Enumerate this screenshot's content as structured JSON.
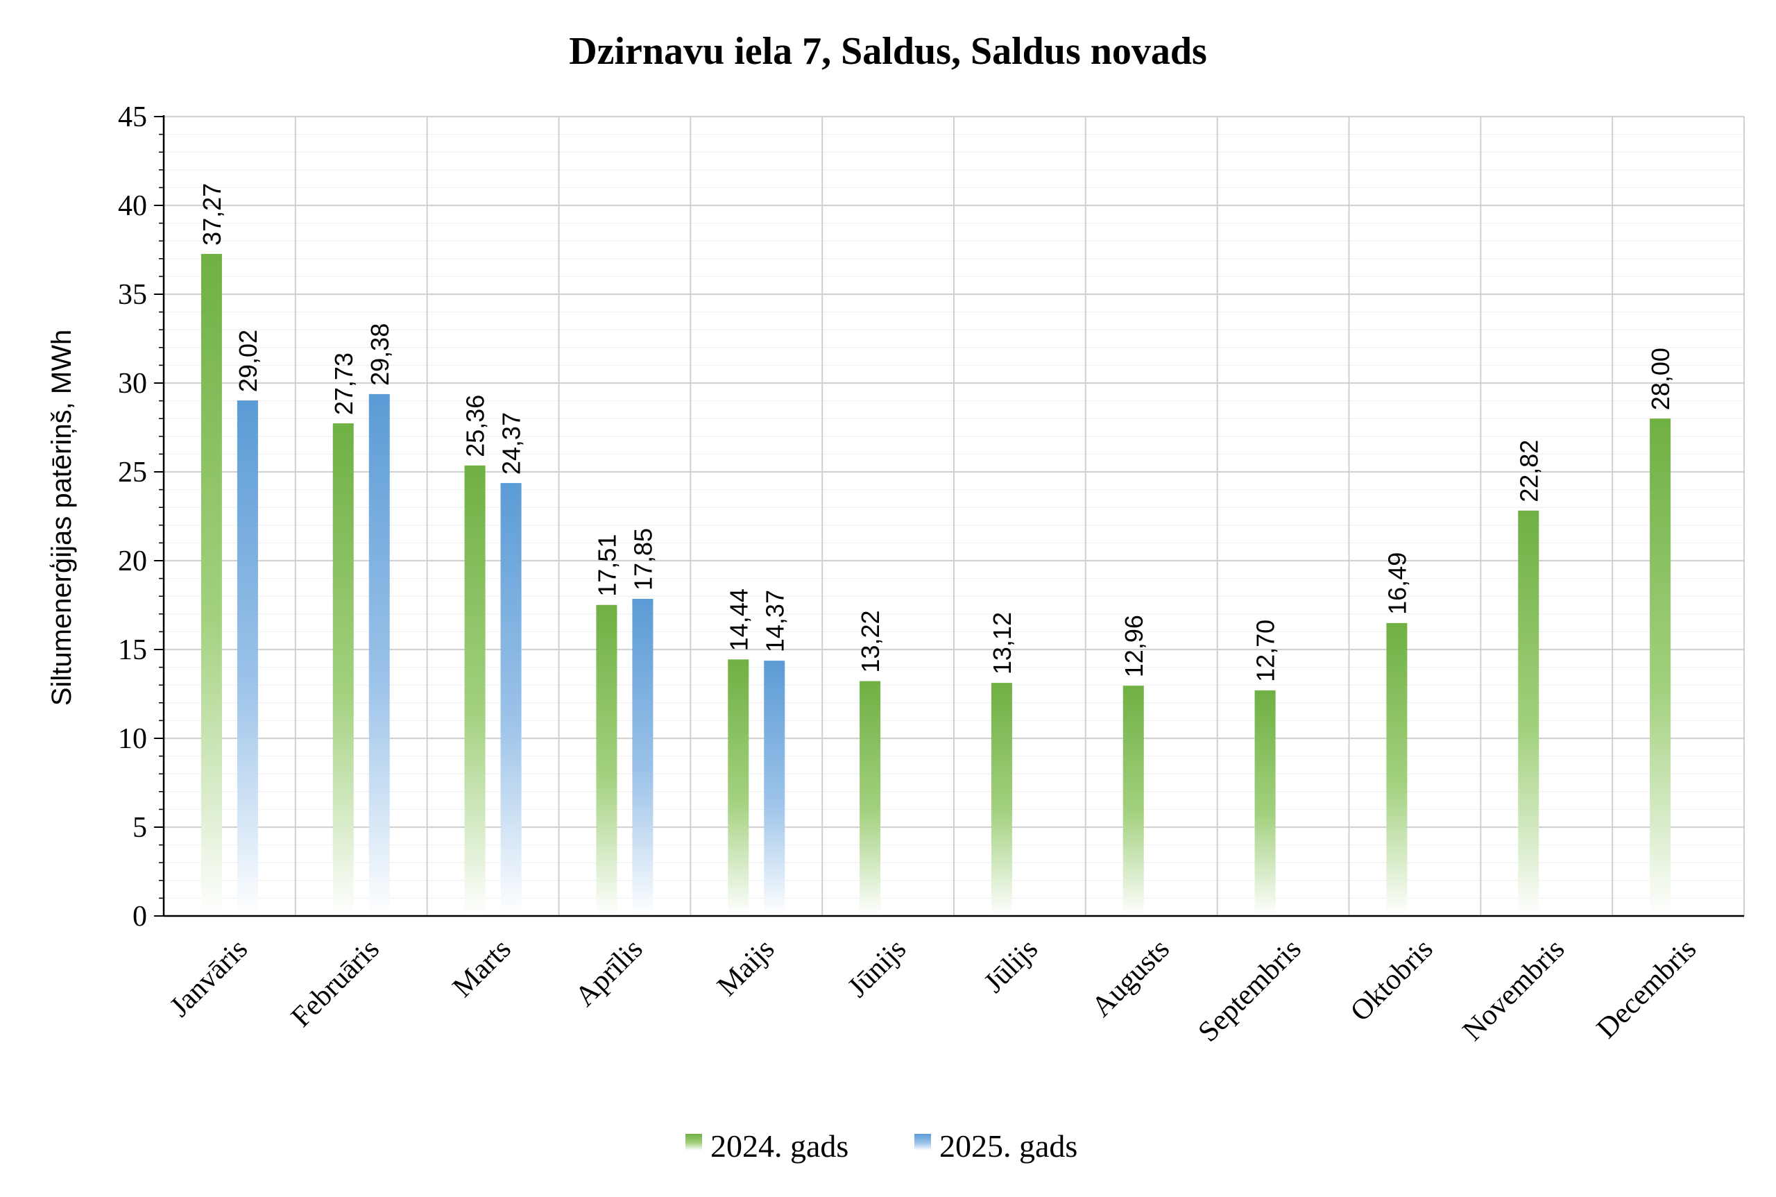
{
  "chart_data": {
    "type": "bar",
    "title": "Dzirnavu iela 7, Saldus, Saldus novads",
    "ylabel": "Siltumenerģijas patēriņš, MWh",
    "xlabel": "",
    "ylim": [
      0,
      45
    ],
    "yticks": [
      "0",
      "5",
      "10",
      "15",
      "20",
      "25",
      "30",
      "35",
      "40",
      "45"
    ],
    "grid": true,
    "legend_position": "bottom",
    "categories": [
      "Janvāris",
      "Februāris",
      "Marts",
      "Aprīlis",
      "Maijs",
      "Jūnijs",
      "Jūlijs",
      "Augusts",
      "Septembris",
      "Oktobris",
      "Novembris",
      "Decembris"
    ],
    "series": [
      {
        "name": "2024. gads",
        "color": "#6fb043",
        "values": [
          37.27,
          27.73,
          25.36,
          17.51,
          14.44,
          13.22,
          13.12,
          12.96,
          12.7,
          16.49,
          22.82,
          28.0
        ],
        "labels": [
          "37,27",
          "27,73",
          "25,36",
          "17,51",
          "14,44",
          "13,22",
          "13,12",
          "12,96",
          "12,70",
          "16,49",
          "22,82",
          "28,00"
        ]
      },
      {
        "name": "2025. gads",
        "color": "#5b9bd5",
        "values": [
          29.02,
          29.38,
          24.37,
          17.85,
          14.37,
          null,
          null,
          null,
          null,
          null,
          null,
          null
        ],
        "labels": [
          "29,02",
          "29,38",
          "24,37",
          "17,85",
          "14,37",
          "",
          "",
          "",
          "",
          "",
          "",
          ""
        ]
      }
    ]
  }
}
